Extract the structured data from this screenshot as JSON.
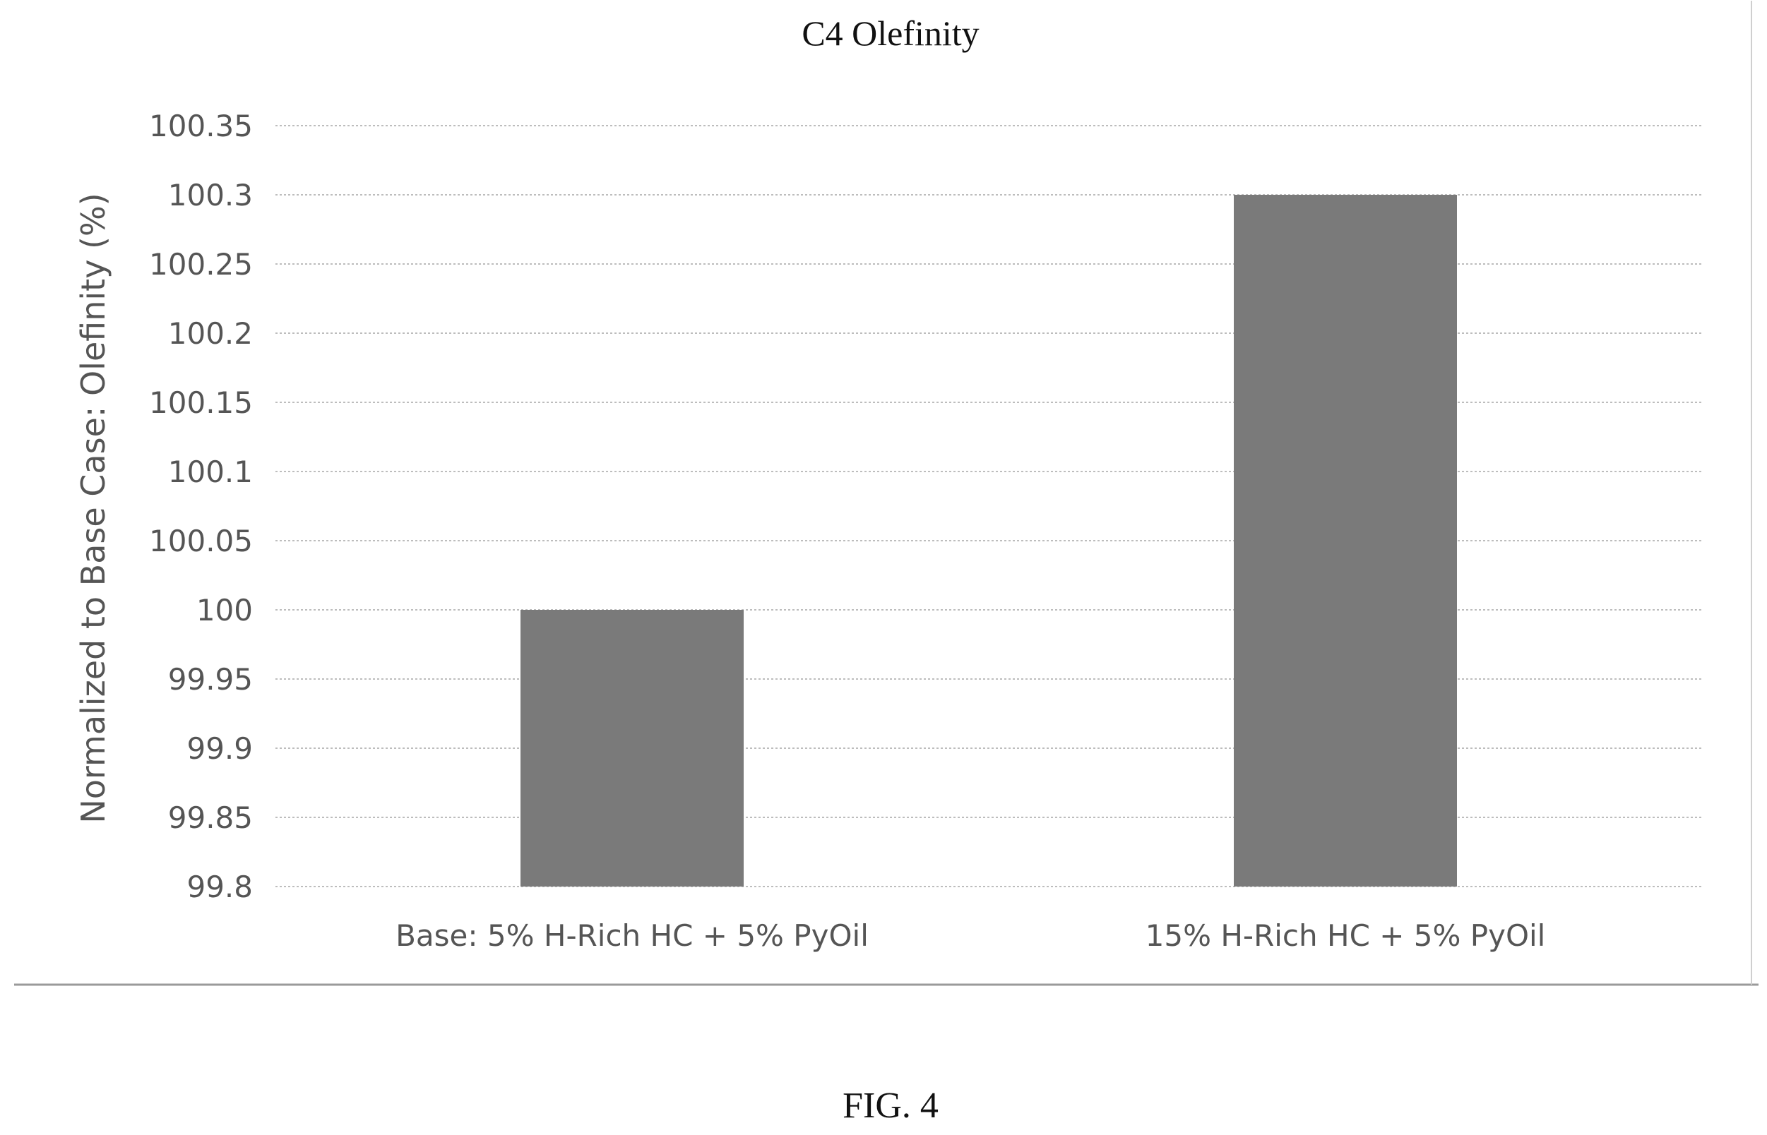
{
  "chart_data": {
    "type": "bar",
    "title": "C4 Olefinity",
    "categories": [
      "Base: 5% H-Rich HC + 5% PyOil",
      "15% H-Rich HC + 5% PyOil"
    ],
    "values": [
      100.0,
      100.3
    ],
    "xlabel": "",
    "ylabel": "Normalized to Base Case: Olefinity (%)",
    "ylim": [
      99.8,
      100.35
    ],
    "yticks": [
      "100.35",
      "100.3",
      "100.25",
      "100.2",
      "100.15",
      "100.1",
      "100.05",
      "100",
      "99.95",
      "99.9",
      "99.85",
      "99.8"
    ],
    "ytick_values": [
      100.35,
      100.3,
      100.25,
      100.2,
      100.15,
      100.1,
      100.05,
      100.0,
      99.95,
      99.9,
      99.85,
      99.8
    ],
    "grid": true,
    "legend": "none",
    "bar_color": "#7a7a7a",
    "grid_color": "#bdbdbd"
  },
  "caption": "FIG. 4"
}
